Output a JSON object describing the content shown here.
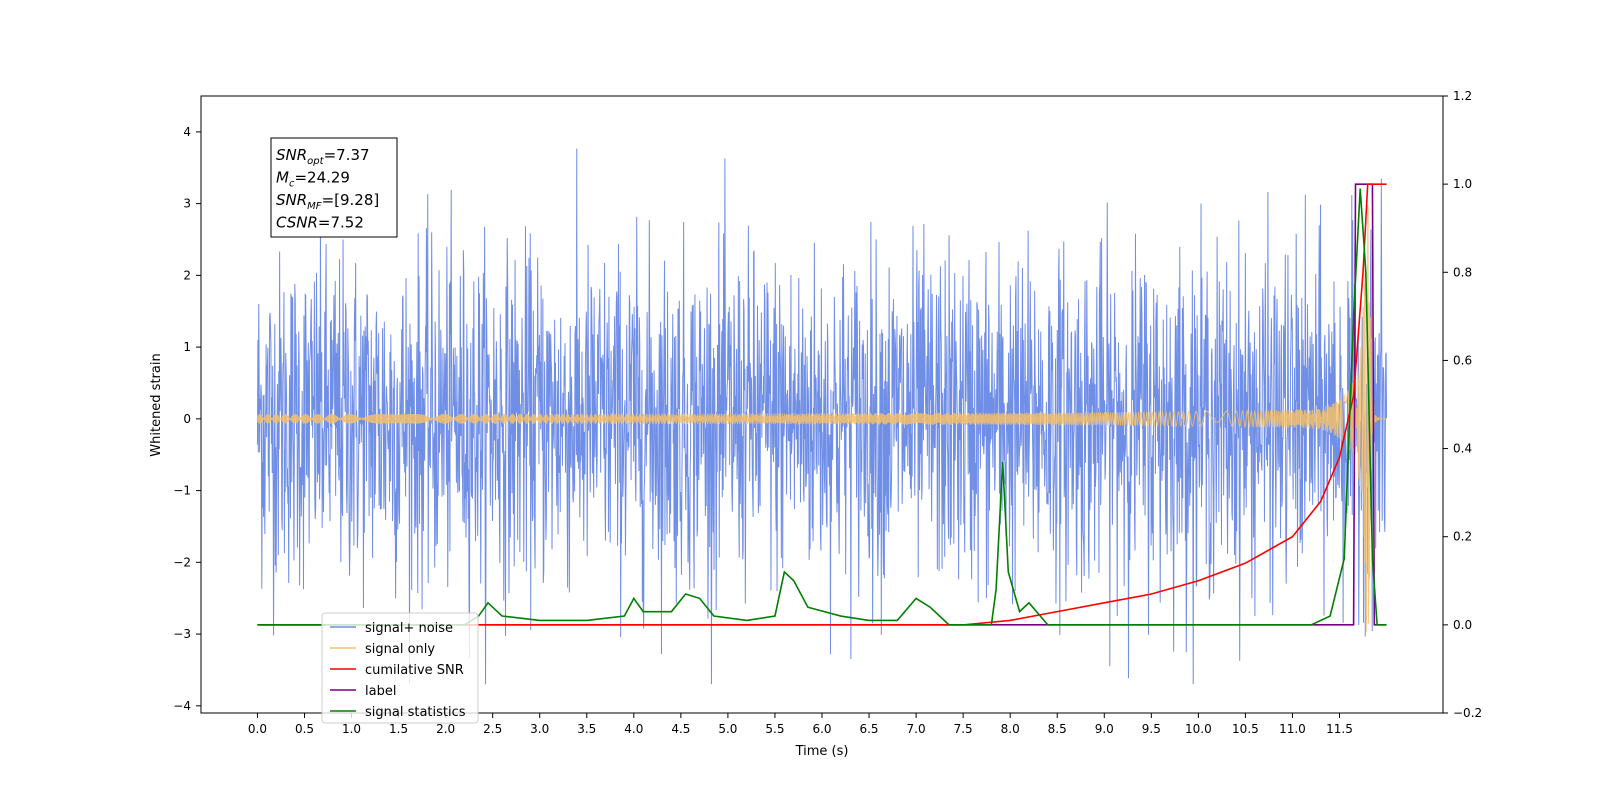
{
  "chart_data": {
    "type": "line",
    "xlabel": "Time (s)",
    "ylabel": "Whitened strain",
    "xlim": [
      -0.6,
      12.6
    ],
    "ylim": [
      -4.1,
      4.5
    ],
    "y2lim": [
      -0.2,
      1.2
    ],
    "x_ticks": [
      "0.0",
      "0.5",
      "1.0",
      "1.5",
      "2.0",
      "2.5",
      "3.0",
      "3.5",
      "4.0",
      "4.5",
      "5.0",
      "5.5",
      "6.0",
      "6.5",
      "7.0",
      "7.5",
      "8.0",
      "8.5",
      "9.0",
      "9.5",
      "10.0",
      "10.5",
      "11.0",
      "11.5"
    ],
    "y_ticks": [
      "4",
      "3",
      "2",
      "1",
      "0",
      "−1",
      "−2",
      "−3",
      "−4"
    ],
    "y2_ticks": [
      "1.2",
      "1.0",
      "0.8",
      "0.6",
      "0.4",
      "0.2",
      "0.0",
      "−0.2"
    ],
    "annotation": [
      {
        "main": "SNR",
        "sub": "opt",
        "rest": "=7.37"
      },
      {
        "main": "M",
        "sub": "c",
        "rest": "=24.29"
      },
      {
        "main": "SNR",
        "sub": "MF",
        "rest": "=[9.28]"
      },
      {
        "main": "CSNR",
        "sub": "",
        "rest": "=7.52"
      }
    ],
    "legend_position": "lower-left",
    "series": [
      {
        "name": "signal+ noise",
        "color": "#6f8ee6",
        "axis": "left",
        "x_range": [
          0.0,
          12.0
        ],
        "approx_envelope": [
          -3.7,
          4.1
        ],
        "description_values": {
          "typical_amplitude": 2.5
        }
      },
      {
        "name": "signal only",
        "color": "#f5c06a",
        "axis": "left",
        "x_range": [
          0.0,
          12.0
        ],
        "peak_amplitude": 3.0,
        "merger_time": 11.82
      },
      {
        "name": "cumilative SNR",
        "color": "#ff0000",
        "axis": "right",
        "points": [
          [
            0.0,
            0.0
          ],
          [
            7.5,
            0.0
          ],
          [
            8.0,
            0.01
          ],
          [
            8.5,
            0.03
          ],
          [
            9.0,
            0.05
          ],
          [
            9.5,
            0.07
          ],
          [
            10.0,
            0.1
          ],
          [
            10.5,
            0.14
          ],
          [
            11.0,
            0.2
          ],
          [
            11.3,
            0.28
          ],
          [
            11.5,
            0.38
          ],
          [
            11.65,
            0.52
          ],
          [
            11.75,
            0.8
          ],
          [
            11.8,
            1.0
          ],
          [
            12.0,
            1.0
          ]
        ]
      },
      {
        "name": "label",
        "color": "#7a0082",
        "axis": "right",
        "points": [
          [
            0.0,
            0.0
          ],
          [
            11.65,
            0.0
          ],
          [
            11.67,
            1.0
          ],
          [
            11.85,
            1.0
          ],
          [
            11.87,
            0.0
          ],
          [
            12.0,
            0.0
          ]
        ]
      },
      {
        "name": "signal statistics",
        "color": "#008000",
        "axis": "right",
        "points": [
          [
            0.0,
            0.0
          ],
          [
            2.2,
            0.0
          ],
          [
            2.35,
            0.02
          ],
          [
            2.45,
            0.05
          ],
          [
            2.6,
            0.02
          ],
          [
            3.0,
            0.01
          ],
          [
            3.5,
            0.01
          ],
          [
            3.9,
            0.02
          ],
          [
            4.0,
            0.06
          ],
          [
            4.1,
            0.03
          ],
          [
            4.4,
            0.03
          ],
          [
            4.55,
            0.07
          ],
          [
            4.7,
            0.06
          ],
          [
            4.85,
            0.02
          ],
          [
            5.2,
            0.01
          ],
          [
            5.5,
            0.02
          ],
          [
            5.6,
            0.12
          ],
          [
            5.7,
            0.1
          ],
          [
            5.85,
            0.04
          ],
          [
            6.2,
            0.02
          ],
          [
            6.5,
            0.01
          ],
          [
            6.8,
            0.01
          ],
          [
            7.0,
            0.06
          ],
          [
            7.15,
            0.04
          ],
          [
            7.35,
            0.0
          ],
          [
            7.8,
            0.0
          ],
          [
            7.85,
            0.08
          ],
          [
            7.92,
            0.37
          ],
          [
            7.98,
            0.12
          ],
          [
            8.1,
            0.03
          ],
          [
            8.2,
            0.05
          ],
          [
            8.4,
            0.0
          ],
          [
            11.2,
            0.0
          ],
          [
            11.4,
            0.02
          ],
          [
            11.55,
            0.15
          ],
          [
            11.65,
            0.7
          ],
          [
            11.72,
            0.99
          ],
          [
            11.78,
            0.8
          ],
          [
            11.85,
            0.15
          ],
          [
            11.9,
            0.0
          ],
          [
            12.0,
            0.0
          ]
        ]
      }
    ]
  }
}
